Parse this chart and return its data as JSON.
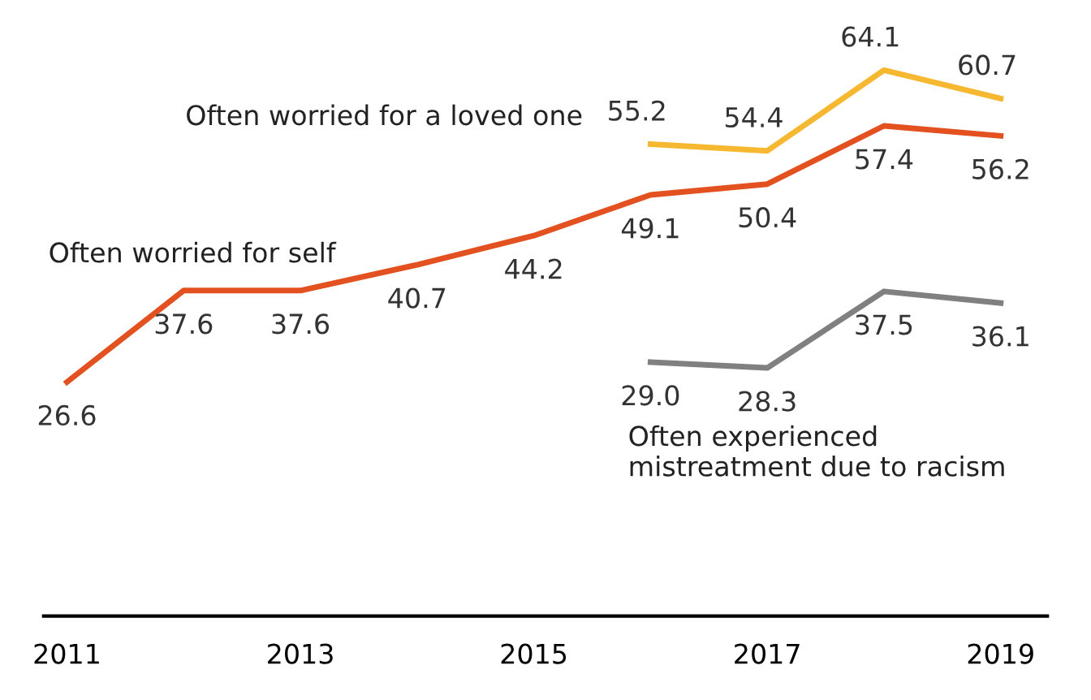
{
  "chart_data": {
    "type": "line",
    "x": [
      2011,
      2012,
      2013,
      2014,
      2015,
      2016,
      2017,
      2018,
      2019
    ],
    "series": [
      {
        "name": "Often worried for self",
        "color": "#e2511f",
        "values": [
          26.6,
          37.6,
          37.6,
          40.7,
          44.2,
          49.1,
          50.4,
          57.4,
          56.2
        ],
        "value_labels": [
          "26.6",
          "37.6",
          "37.6",
          "40.7",
          "44.2",
          "49.1",
          "50.4",
          "57.4",
          "56.2"
        ]
      },
      {
        "name": "Often worried for a loved one",
        "color": "#f6b830",
        "values": [
          null,
          null,
          null,
          null,
          null,
          55.2,
          54.4,
          64.1,
          60.7
        ],
        "value_labels": [
          null,
          null,
          null,
          null,
          null,
          "55.2",
          "54.4",
          "64.1",
          "60.7"
        ]
      },
      {
        "name": "Often experienced\nmistreatment due to racism",
        "color": "#808080",
        "values": [
          null,
          null,
          null,
          null,
          null,
          29.0,
          28.3,
          37.5,
          36.1
        ],
        "value_labels": [
          null,
          null,
          null,
          null,
          null,
          "29.0",
          "28.3",
          "37.5",
          "36.1"
        ]
      }
    ],
    "xlim": [
      2010.8,
      2019.4
    ],
    "xticks": [
      2011,
      2013,
      2015,
      2017,
      2019
    ],
    "grid": false,
    "legend": false,
    "marker": "none",
    "line_style": "solid"
  }
}
